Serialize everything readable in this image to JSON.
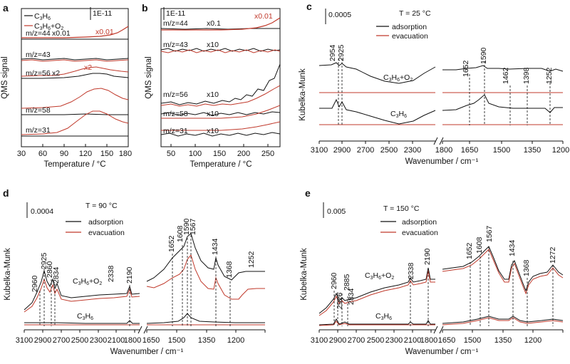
{
  "colors": {
    "black": "#111111",
    "red": "#c0392b"
  },
  "chart_data": [
    {
      "panel": "a",
      "type": "line",
      "xlabel": "Temperature / °C",
      "ylabel": "QMS signal",
      "xlim": [
        30,
        180
      ],
      "xticks": [
        "30",
        "60",
        "90",
        "120",
        "150",
        "180"
      ],
      "scalebar": "1E-11",
      "legend": [
        "C3H6",
        "C3H6+O2"
      ],
      "traces": [
        {
          "label": "m/z=44",
          "factor": "x0.01",
          "red_factor": "x0.01"
        },
        {
          "label": "m/z=43",
          "factor": "",
          "red_factor": ""
        },
        {
          "label": "m/z=56",
          "factor": "x2",
          "red_factor": "x2"
        },
        {
          "label": "m/z=58",
          "factor": "",
          "red_factor": ""
        },
        {
          "label": "m/z=31",
          "factor": "",
          "red_factor": ""
        }
      ]
    },
    {
      "panel": "b",
      "type": "line",
      "xlabel": "Temperature / °C",
      "ylabel": "QMS signal",
      "xlim": [
        30,
        275
      ],
      "xticks": [
        "50",
        "100",
        "150",
        "200",
        "250"
      ],
      "scalebar": "1E-11",
      "traces": [
        {
          "label": "m/z=44",
          "factor": "x0.1",
          "red_factor": "x0.01"
        },
        {
          "label": "m/z=43",
          "factor": "x10",
          "red_factor": ""
        },
        {
          "label": "m/z=56",
          "factor": "x10",
          "red_factor": ""
        },
        {
          "label": "m/z=58",
          "factor": "x10",
          "red_factor": ""
        },
        {
          "label": "m/z=31",
          "factor": "x10",
          "red_factor": ""
        }
      ]
    },
    {
      "panel": "c",
      "type": "line",
      "title": "T = 25 °C",
      "xlabel": "Wavenumber / cm⁻¹",
      "ylabel": "Kubelka-Munk",
      "xticks": [
        "3100",
        "2900",
        "2700",
        "2500",
        "2300",
        "1800",
        "1650",
        "1500",
        "1350",
        "1200"
      ],
      "scalebar": "0.0005",
      "legend": [
        "adsorption",
        "evacuation"
      ],
      "labels": [
        "C3H6+O2",
        "C3H6"
      ],
      "peaks": [
        "2954",
        "2925",
        "1652",
        "1590",
        "1462",
        "1398",
        "1252"
      ]
    },
    {
      "panel": "d",
      "type": "line",
      "title": "T = 90 °C",
      "xlabel": "Wavenumber / cm⁻¹",
      "ylabel": "Kubelka-Munk",
      "xticks": [
        "3100",
        "2900",
        "2700",
        "2500",
        "2300",
        "2100",
        "1800",
        "1650",
        "1500",
        "1350",
        "1200"
      ],
      "scalebar": "0.0004",
      "legend": [
        "adsorption",
        "evacuation"
      ],
      "labels": [
        "C3H6+O2",
        "C3H6"
      ],
      "peaks": [
        "2960",
        "2925",
        "2860",
        "2834",
        "2338",
        "2190",
        "1652",
        "1608",
        "1590",
        "1567",
        "1434",
        "1368",
        "1252"
      ]
    },
    {
      "panel": "e",
      "type": "line",
      "title": "T = 150 °C",
      "xlabel": "Wavenumber / cm⁻¹",
      "ylabel": "Kubelka-Munk",
      "xticks": [
        "3100",
        "2900",
        "2700",
        "2500",
        "2300",
        "2100",
        "1800",
        "1650",
        "1500",
        "1350",
        "1200"
      ],
      "scalebar": "0.005",
      "legend": [
        "adsorption",
        "evacuation"
      ],
      "labels": [
        "C3H6+O2",
        "C3H6"
      ],
      "peaks": [
        "2960",
        "2926",
        "2885",
        "2834",
        "2338",
        "2190",
        "1652",
        "1608",
        "1567",
        "1434",
        "1368",
        "1272"
      ]
    }
  ]
}
